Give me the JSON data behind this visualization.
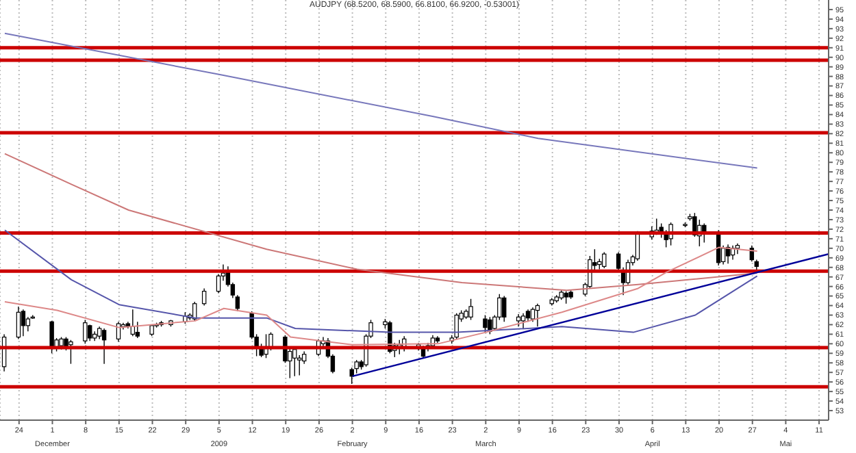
{
  "chart_data": {
    "type": "candlestick",
    "title": "AUDJPY (68.5200, 68.5900, 66.8100, 66.9200, -0.53001)",
    "x": [
      "2008-11-21",
      "2008-11-24",
      "2008-11-25",
      "2008-11-26",
      "2008-11-27",
      "2008-12-01",
      "2008-12-02",
      "2008-12-03",
      "2008-12-04",
      "2008-12-05",
      "2008-12-08",
      "2008-12-09",
      "2008-12-10",
      "2008-12-11",
      "2008-12-12",
      "2008-12-15",
      "2008-12-16",
      "2008-12-17",
      "2008-12-18",
      "2008-12-19",
      "2008-12-22",
      "2008-12-23",
      "2008-12-24",
      "2008-12-26",
      "2008-12-29",
      "2008-12-30",
      "2008-12-31",
      "2009-01-02",
      "2009-01-05",
      "2009-01-06",
      "2009-01-07",
      "2009-01-08",
      "2009-01-09",
      "2009-01-12",
      "2009-01-13",
      "2009-01-14",
      "2009-01-15",
      "2009-01-16",
      "2009-01-19",
      "2009-01-20",
      "2009-01-21",
      "2009-01-22",
      "2009-01-23",
      "2009-01-26",
      "2009-01-27",
      "2009-01-28",
      "2009-01-29",
      "2009-02-02",
      "2009-02-03",
      "2009-02-04",
      "2009-02-05",
      "2009-02-06",
      "2009-02-09",
      "2009-02-10",
      "2009-02-11",
      "2009-02-12",
      "2009-02-13",
      "2009-02-16",
      "2009-02-17",
      "2009-02-18",
      "2009-02-19",
      "2009-02-20",
      "2009-02-23",
      "2009-02-24",
      "2009-02-25",
      "2009-02-26",
      "2009-02-27",
      "2009-03-02",
      "2009-03-03",
      "2009-03-04",
      "2009-03-05",
      "2009-03-06",
      "2009-03-09",
      "2009-03-10",
      "2009-03-11",
      "2009-03-12",
      "2009-03-13",
      "2009-03-16",
      "2009-03-17",
      "2009-03-18",
      "2009-03-19",
      "2009-03-20",
      "2009-03-23",
      "2009-03-24",
      "2009-03-25",
      "2009-03-26",
      "2009-03-27",
      "2009-03-30",
      "2009-03-31",
      "2009-04-01",
      "2009-04-02",
      "2009-04-03",
      "2009-04-06",
      "2009-04-07",
      "2009-04-08",
      "2009-04-09",
      "2009-04-10",
      "2009-04-13",
      "2009-04-14",
      "2009-04-15",
      "2009-04-16",
      "2009-04-17",
      "2009-04-20",
      "2009-04-21",
      "2009-04-22",
      "2009-04-23",
      "2009-04-24",
      "2009-04-27",
      "2009-04-28"
    ],
    "ohlc": [
      [
        57.6,
        61.0,
        57.1,
        60.7
      ],
      [
        60.7,
        63.9,
        60.5,
        63.3
      ],
      [
        63.4,
        63.6,
        60.8,
        61.9
      ],
      [
        61.9,
        62.8,
        61.3,
        62.6
      ],
      [
        62.7,
        63.0,
        62.6,
        62.8
      ],
      [
        62.3,
        62.4,
        59.0,
        59.6
      ],
      [
        59.6,
        60.6,
        59.2,
        60.4
      ],
      [
        59.8,
        60.7,
        59.4,
        60.5
      ],
      [
        60.5,
        60.7,
        59.3,
        59.6
      ],
      [
        59.9,
        60.4,
        57.9,
        60.2
      ],
      [
        60.3,
        62.5,
        60.0,
        62.2
      ],
      [
        61.9,
        62.0,
        60.3,
        60.6
      ],
      [
        60.6,
        61.3,
        60.3,
        61.0
      ],
      [
        60.8,
        61.8,
        60.5,
        61.6
      ],
      [
        61.4,
        61.6,
        57.9,
        60.4
      ],
      [
        60.5,
        62.3,
        60.2,
        62.1
      ],
      [
        61.8,
        62.2,
        61.5,
        62.0
      ],
      [
        62.1,
        62.3,
        61.6,
        61.8
      ],
      [
        61.0,
        63.6,
        60.8,
        61.8
      ],
      [
        61.2,
        62.3,
        60.6,
        60.8
      ],
      [
        61.0,
        62.0,
        60.8,
        61.9
      ],
      [
        61.9,
        62.2,
        61.7,
        62.0
      ],
      [
        62.2,
        62.4,
        61.8,
        62.0
      ],
      [
        62.0,
        62.5,
        61.8,
        62.4
      ],
      [
        62.3,
        63.3,
        62.1,
        62.9
      ],
      [
        62.7,
        63.2,
        62.5,
        63.0
      ],
      [
        62.6,
        64.4,
        62.4,
        64.2
      ],
      [
        64.2,
        65.8,
        64.0,
        65.5
      ],
      [
        65.5,
        67.3,
        65.3,
        67.1
      ],
      [
        67.1,
        68.3,
        66.6,
        67.4
      ],
      [
        67.7,
        68.1,
        66.0,
        66.2
      ],
      [
        66.2,
        66.4,
        64.8,
        65.1
      ],
      [
        64.9,
        65.1,
        63.4,
        63.7
      ],
      [
        63.2,
        63.4,
        60.5,
        60.7
      ],
      [
        60.7,
        61.0,
        58.7,
        59.5
      ],
      [
        59.5,
        60.0,
        58.6,
        58.8
      ],
      [
        58.9,
        61.0,
        58.5,
        59.7
      ],
      [
        59.6,
        61.2,
        59.3,
        61.0
      ],
      [
        60.7,
        60.9,
        58.0,
        58.2
      ],
      [
        58.2,
        59.5,
        56.4,
        59.2
      ],
      [
        58.5,
        59.6,
        56.6,
        59.4
      ],
      [
        58.3,
        58.8,
        56.7,
        58.5
      ],
      [
        58.2,
        59.2,
        57.9,
        58.9
      ],
      [
        58.9,
        60.5,
        58.7,
        60.3
      ],
      [
        60.0,
        60.7,
        59.6,
        60.3
      ],
      [
        60.3,
        60.6,
        58.5,
        58.7
      ],
      [
        58.7,
        58.9,
        56.9,
        57.1
      ],
      [
        57.3,
        57.5,
        55.8,
        56.6
      ],
      [
        57.4,
        58.3,
        56.9,
        58.1
      ],
      [
        58.1,
        58.3,
        57.3,
        57.6
      ],
      [
        57.8,
        61.0,
        57.6,
        60.8
      ],
      [
        60.8,
        62.5,
        60.6,
        62.2
      ],
      [
        62.0,
        62.6,
        61.6,
        62.3
      ],
      [
        62.2,
        62.4,
        59.0,
        59.2
      ],
      [
        59.3,
        60.1,
        58.6,
        59.8
      ],
      [
        59.6,
        60.4,
        58.9,
        59.9
      ],
      [
        59.7,
        60.8,
        59.2,
        60.5
      ],
      [
        59.6,
        60.1,
        59.3,
        59.9
      ],
      [
        59.6,
        59.8,
        58.5,
        58.7
      ],
      [
        59.5,
        60.1,
        59.2,
        59.8
      ],
      [
        59.8,
        60.9,
        59.5,
        60.6
      ],
      [
        60.6,
        60.8,
        60.1,
        60.3
      ],
      [
        60.3,
        60.9,
        60.0,
        60.6
      ],
      [
        60.7,
        63.2,
        60.5,
        63.0
      ],
      [
        62.6,
        63.5,
        62.3,
        63.2
      ],
      [
        62.8,
        63.6,
        62.6,
        63.4
      ],
      [
        62.8,
        64.7,
        62.5,
        63.9
      ],
      [
        62.6,
        63.0,
        61.2,
        61.7
      ],
      [
        62.5,
        62.8,
        61.0,
        61.3
      ],
      [
        61.6,
        63.0,
        61.4,
        62.8
      ],
      [
        62.8,
        65.2,
        62.5,
        64.8
      ],
      [
        64.8,
        65.0,
        62.3,
        62.8
      ],
      [
        62.4,
        63.1,
        61.8,
        62.8
      ],
      [
        62.4,
        63.2,
        61.6,
        62.9
      ],
      [
        63.4,
        63.6,
        62.3,
        62.7
      ],
      [
        62.6,
        63.8,
        62.3,
        63.6
      ],
      [
        63.5,
        64.2,
        61.8,
        64.0
      ],
      [
        64.2,
        64.8,
        64.0,
        64.6
      ],
      [
        64.5,
        65.1,
        64.3,
        64.9
      ],
      [
        64.8,
        65.6,
        64.6,
        65.4
      ],
      [
        65.3,
        65.5,
        64.2,
        64.9
      ],
      [
        65.4,
        65.6,
        64.7,
        64.9
      ],
      [
        65.2,
        66.4,
        65.0,
        66.2
      ],
      [
        66.0,
        69.2,
        65.8,
        68.8
      ],
      [
        68.5,
        69.9,
        67.5,
        68.2
      ],
      [
        68.3,
        68.9,
        67.8,
        68.6
      ],
      [
        68.1,
        69.6,
        67.9,
        69.4
      ],
      [
        69.4,
        69.6,
        67.6,
        67.9
      ],
      [
        67.7,
        68.0,
        65.1,
        66.4
      ],
      [
        66.4,
        68.8,
        66.2,
        68.5
      ],
      [
        68.5,
        69.3,
        68.2,
        69.1
      ],
      [
        68.9,
        71.8,
        68.7,
        71.5
      ],
      [
        71.2,
        72.3,
        70.9,
        71.8
      ],
      [
        71.7,
        73.1,
        71.4,
        71.9
      ],
      [
        72.2,
        72.6,
        71.1,
        71.6
      ],
      [
        71.6,
        71.9,
        70.1,
        70.9
      ],
      [
        71.0,
        72.7,
        70.3,
        72.5
      ],
      [
        72.4,
        72.7,
        72.2,
        72.5
      ],
      [
        73.1,
        73.6,
        72.9,
        73.3
      ],
      [
        73.3,
        73.7,
        71.2,
        71.4
      ],
      [
        71.3,
        73.0,
        70.2,
        72.4
      ],
      [
        72.4,
        72.6,
        70.6,
        71.7
      ],
      [
        71.7,
        71.9,
        68.2,
        68.5
      ],
      [
        68.6,
        70.3,
        68.3,
        70.0
      ],
      [
        70.1,
        70.4,
        68.4,
        69.2
      ],
      [
        69.3,
        70.3,
        68.8,
        70.0
      ],
      [
        70.0,
        70.5,
        69.4,
        70.3
      ],
      [
        70.0,
        70.3,
        68.6,
        68.8
      ],
      [
        68.6,
        68.8,
        67.6,
        68.1
      ]
    ],
    "series": [
      {
        "type": "line",
        "color": "#7777bb",
        "x": [
          "2008-11-21",
          "2009-01-05",
          "2009-02-19",
          "2009-03-13",
          "2009-04-28"
        ],
        "values": [
          92.5,
          88.2,
          83.8,
          81.5,
          78.4
        ]
      },
      {
        "type": "line",
        "color": "#cc7777",
        "x": [
          "2008-11-21",
          "2008-12-05",
          "2008-12-17",
          "2009-01-15",
          "2009-02-03",
          "2009-02-25",
          "2009-03-19",
          "2009-04-03",
          "2009-04-28"
        ],
        "values": [
          79.9,
          76.7,
          74.0,
          69.9,
          67.8,
          66.4,
          65.6,
          66.2,
          67.4
        ]
      },
      {
        "type": "line",
        "color": "#5555aa",
        "x": [
          "2008-11-21",
          "2008-12-05",
          "2008-12-15",
          "2008-12-31",
          "2009-01-15",
          "2009-01-21",
          "2009-02-10",
          "2009-02-24",
          "2009-03-18",
          "2009-04-02",
          "2009-04-15",
          "2009-04-28"
        ],
        "values": [
          71.9,
          66.7,
          64.1,
          62.7,
          62.7,
          61.6,
          61.2,
          61.2,
          61.8,
          61.2,
          63.0,
          67.1
        ]
      },
      {
        "type": "line",
        "color": "#dd8888",
        "x": [
          "2008-11-21",
          "2008-12-02",
          "2008-12-15",
          "2008-12-31",
          "2009-01-06",
          "2009-01-15",
          "2009-01-20",
          "2009-02-02",
          "2009-02-20",
          "2009-03-02",
          "2009-03-18",
          "2009-04-03",
          "2009-04-09",
          "2009-04-20",
          "2009-04-28"
        ],
        "values": [
          64.4,
          63.5,
          61.7,
          62.4,
          63.7,
          63.0,
          60.7,
          59.9,
          60.0,
          61.2,
          63.3,
          65.8,
          67.5,
          70.1,
          69.7
        ]
      },
      {
        "type": "line",
        "color": "#000099",
        "x": [
          "2009-02-02",
          "2009-05-13"
        ],
        "values": [
          56.6,
          69.4
        ]
      }
    ],
    "ref_lines": [
      {
        "axis": "y",
        "value": 91,
        "color": "#cc0000"
      },
      {
        "axis": "y",
        "value": 89.7,
        "color": "#cc0000"
      },
      {
        "axis": "y",
        "value": 82.1,
        "color": "#cc0000"
      },
      {
        "axis": "y",
        "value": 71.6,
        "color": "#cc0000"
      },
      {
        "axis": "y",
        "value": 67.6,
        "color": "#cc0000"
      },
      {
        "axis": "y",
        "value": 59.6,
        "color": "#cc0000"
      },
      {
        "axis": "y",
        "value": 55.5,
        "color": "#cc0000"
      }
    ],
    "annotations": [
      "December",
      "2009",
      "February",
      "March",
      "April",
      "Mai"
    ],
    "xlim": [
      "2008-11-20",
      "2009-05-13"
    ],
    "xticks": [
      {
        "value": "2008-11-24",
        "label": "24"
      },
      {
        "value": "2008-12-01",
        "label": "1"
      },
      {
        "value": "2008-12-08",
        "label": "8"
      },
      {
        "value": "2008-12-15",
        "label": "15"
      },
      {
        "value": "2008-12-22",
        "label": "22"
      },
      {
        "value": "2008-12-29",
        "label": "29"
      },
      {
        "value": "2009-01-05",
        "label": "5"
      },
      {
        "value": "2009-01-12",
        "label": "12"
      },
      {
        "value": "2009-01-19",
        "label": "19"
      },
      {
        "value": "2009-01-26",
        "label": "26"
      },
      {
        "value": "2009-02-02",
        "label": "2"
      },
      {
        "value": "2009-02-09",
        "label": "9"
      },
      {
        "value": "2009-02-16",
        "label": "16"
      },
      {
        "value": "2009-02-23",
        "label": "23"
      },
      {
        "value": "2009-03-02",
        "label": "2"
      },
      {
        "value": "2009-03-09",
        "label": "9"
      },
      {
        "value": "2009-03-16",
        "label": "16"
      },
      {
        "value": "2009-03-23",
        "label": "23"
      },
      {
        "value": "2009-03-30",
        "label": "30"
      },
      {
        "value": "2009-04-06",
        "label": "6"
      },
      {
        "value": "2009-04-13",
        "label": "13"
      },
      {
        "value": "2009-04-20",
        "label": "20"
      },
      {
        "value": "2009-04-27",
        "label": "27"
      },
      {
        "value": "2009-05-04",
        "label": "4"
      },
      {
        "value": "2009-05-11",
        "label": "11"
      }
    ],
    "ylim": [
      52,
      96
    ],
    "yticks": [
      53,
      54,
      55,
      56,
      57,
      58,
      59,
      60,
      61,
      62,
      63,
      64,
      65,
      66,
      67,
      68,
      69,
      70,
      71,
      72,
      73,
      74,
      75,
      76,
      77,
      78,
      79,
      80,
      81,
      82,
      83,
      84,
      85,
      86,
      87,
      88,
      89,
      90,
      91,
      92,
      93,
      94,
      95
    ],
    "grid": "x",
    "legend": false,
    "marker": "none",
    "line_style": "solid"
  }
}
